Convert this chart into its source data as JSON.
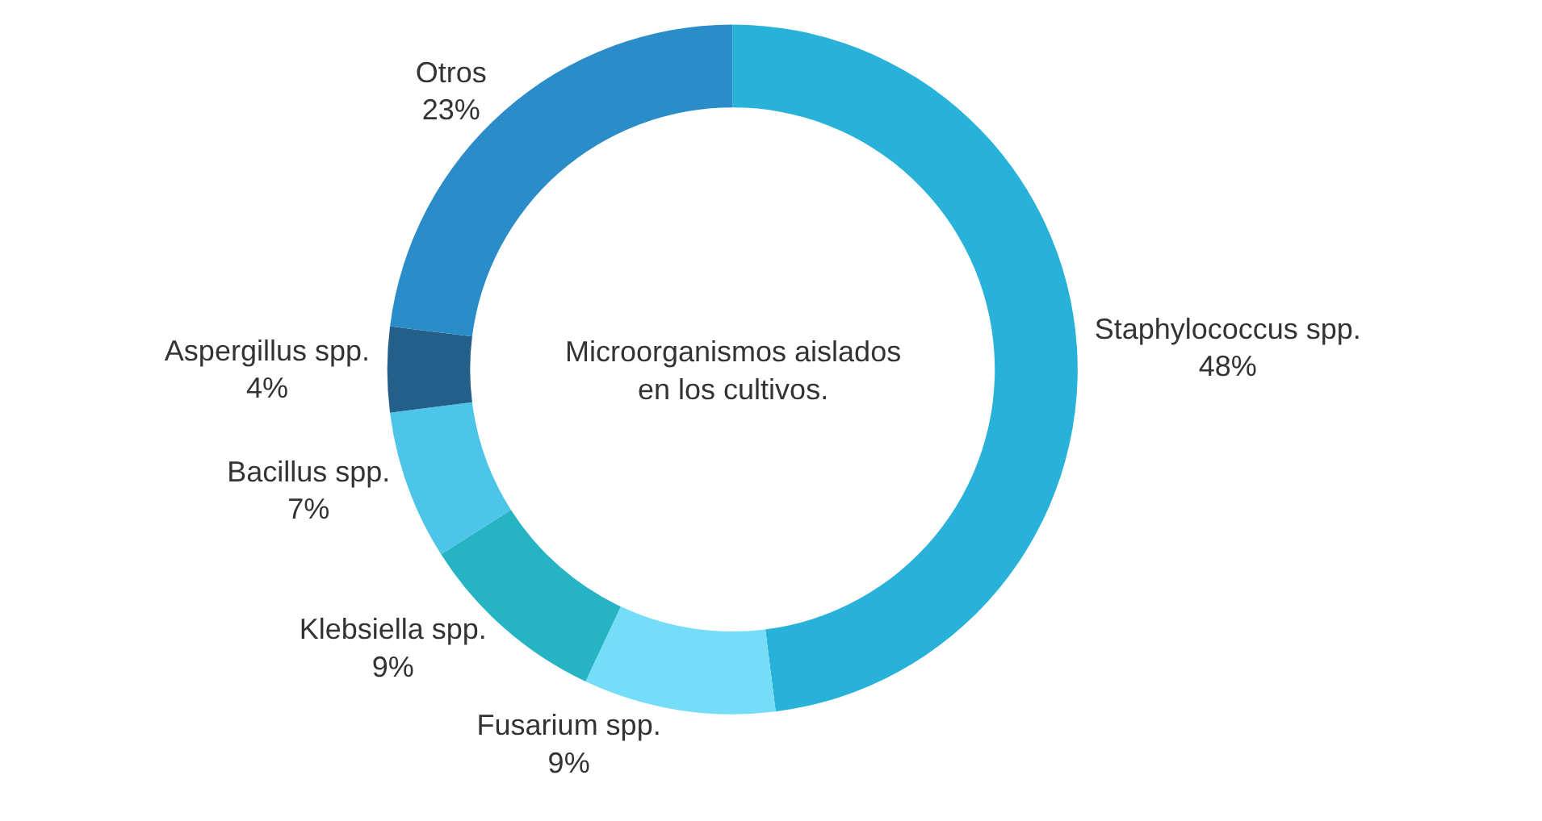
{
  "chart_data": {
    "type": "donut",
    "title": "Microorganismos aislados en los cultivos.",
    "categories": [
      "Staphylococcus spp.",
      "Fusarium spp.",
      "Klebsiella spp.",
      "Bacillus spp.",
      "Aspergillus spp.",
      "Otros"
    ],
    "values": [
      48,
      9,
      9,
      7,
      4,
      23
    ],
    "value_labels": [
      "48%",
      "9%",
      "9%",
      "7%",
      "4%",
      "23%"
    ],
    "colors": [
      "#29b2d9",
      "#75ddf7",
      "#26b3c4",
      "#4dc5e8",
      "#245f8a",
      "#2a8cc8"
    ],
    "legend": false
  }
}
